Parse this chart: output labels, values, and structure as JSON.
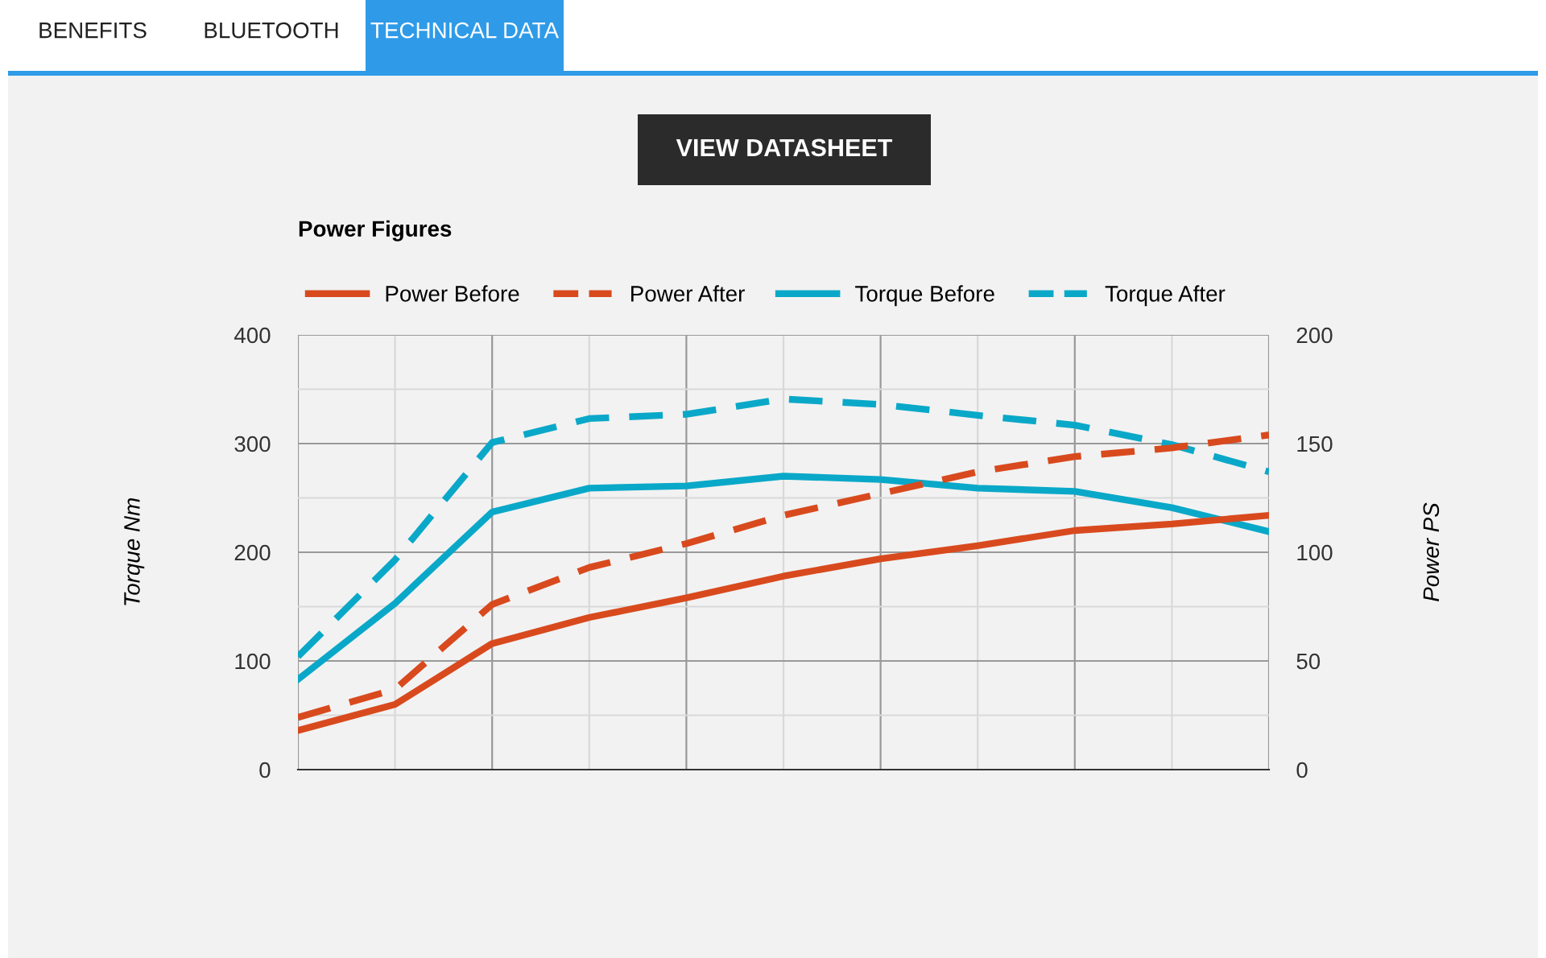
{
  "chart_data": {
    "type": "line",
    "title": "Power Figures",
    "annotations": [
      "BENEFITS",
      "BLUETOOTH",
      "TECHNICAL DATA",
      "VIEW DATASHEET"
    ],
    "categories": [
      null,
      null,
      null,
      null,
      null,
      null,
      null,
      null,
      null,
      null,
      null
    ],
    "series": [
      {
        "name": "Power Before",
        "color": "#d84a1e",
        "axis": "y2",
        "line_style": "solid",
        "values": [
          18,
          30,
          58,
          70,
          79,
          89,
          97,
          103,
          110,
          113,
          117
        ]
      },
      {
        "name": "Power After",
        "color": "#d84a1e",
        "axis": "y2",
        "line_style": "dashed",
        "values": [
          24,
          37,
          76,
          93,
          104,
          117,
          127,
          137,
          144,
          148,
          154
        ]
      },
      {
        "name": "Torque Before",
        "color": "#0aa8c8",
        "line_style": "solid",
        "values": [
          83,
          153,
          237,
          259,
          261,
          270,
          267,
          259,
          256,
          241,
          219
        ]
      },
      {
        "name": "Torque After",
        "color": "#0aa8c8",
        "line_style": "dashed",
        "values": [
          104,
          193,
          301,
          323,
          327,
          341,
          336,
          326,
          317,
          299,
          274
        ]
      }
    ],
    "ylabel": "Torque Nm",
    "y2label": "Power PS",
    "ylim": [
      0,
      400
    ],
    "yticks": [
      0,
      100,
      200,
      300,
      400
    ],
    "y2lim": [
      0,
      200
    ],
    "y2ticks": [
      0,
      50,
      100,
      150,
      200
    ],
    "grid": true,
    "legend": "top left",
    "tick_labels": "y"
  }
}
